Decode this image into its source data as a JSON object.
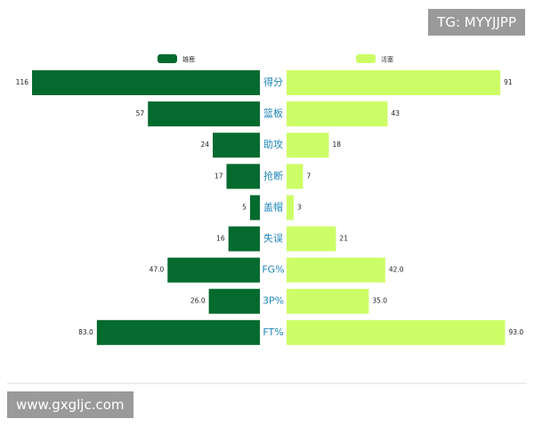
{
  "chart_data": {
    "type": "butterfly",
    "categories": [
      "得分",
      "篮板",
      "助攻",
      "抢断",
      "盖帽",
      "失误",
      "FG%",
      "3P%",
      "FT%"
    ],
    "series": [
      {
        "name": "雄鹿",
        "color": "#046a2e",
        "side": "left",
        "xlim": [
          0,
          116
        ],
        "values": [
          116,
          57,
          24,
          17,
          5,
          16,
          47,
          26,
          83
        ],
        "value_labels": [
          "116",
          "57",
          "24",
          "17",
          "5",
          "16",
          "47.0",
          "26.0",
          "83.0"
        ]
      },
      {
        "name": "活塞",
        "color": "#cdfd66",
        "side": "right",
        "xlim": [
          0,
          97
        ],
        "values": [
          91,
          43,
          18,
          7,
          3,
          21,
          42,
          35,
          93
        ],
        "value_labels": [
          "91",
          "43",
          "18",
          "7",
          "3",
          "21",
          "42.0",
          "35.0",
          "93.0"
        ]
      }
    ],
    "category_color": "#1f86b8"
  },
  "watermark_top": "TG: MYYJJPP",
  "watermark_bottom": "www.gxgljc.com"
}
